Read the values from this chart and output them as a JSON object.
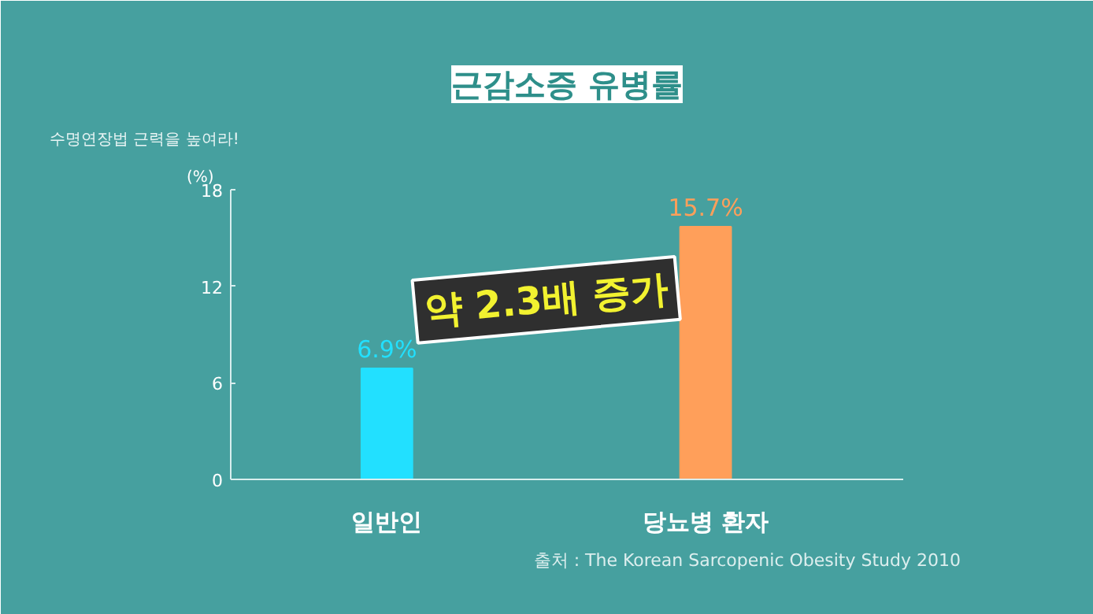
{
  "chart_data": {
    "type": "bar",
    "title": "근감소증 유병률",
    "ylabel": "(%)",
    "categories": [
      "일반인",
      "당뇨병 환자"
    ],
    "values": [
      6.9,
      15.7
    ],
    "colors": [
      "#22e0ff",
      "#ff9f5a"
    ],
    "value_labels": [
      "6.9%",
      "15.7%"
    ],
    "ylim": [
      0,
      18
    ],
    "yticks": [
      0,
      6,
      12,
      18
    ],
    "grid": false,
    "annotations": [
      "수명연장법 근력을 높여라!",
      "약 2.3배 증가",
      "출처 :  The Korean Sarcopenic Obesity Study 2010"
    ]
  }
}
